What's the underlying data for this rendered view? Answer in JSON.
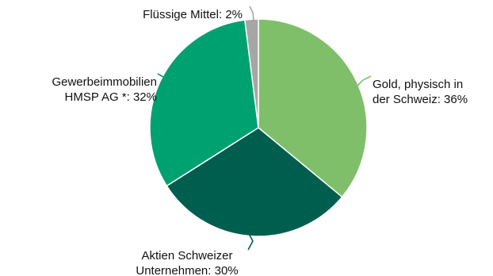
{
  "chart_data": {
    "type": "pie",
    "slices": [
      {
        "label_lines": [
          "Gold, physisch in",
          "der Schweiz: 36%"
        ],
        "value": 36,
        "color": "#7fbf6a"
      },
      {
        "label_lines": [
          "Aktien Schweizer",
          "Unternehmen: 30%"
        ],
        "value": 30,
        "color": "#005e4e"
      },
      {
        "label_lines": [
          "Gewerbeimmobilien",
          "HMSP AG *: 32%"
        ],
        "value": 32,
        "color": "#00a170"
      },
      {
        "label_lines": [
          "Flüssige Mittel: 2%"
        ],
        "value": 2,
        "color": "#a6a6a6"
      }
    ],
    "start_angle_deg": 0,
    "direction": "clockwise",
    "legend": "none"
  }
}
